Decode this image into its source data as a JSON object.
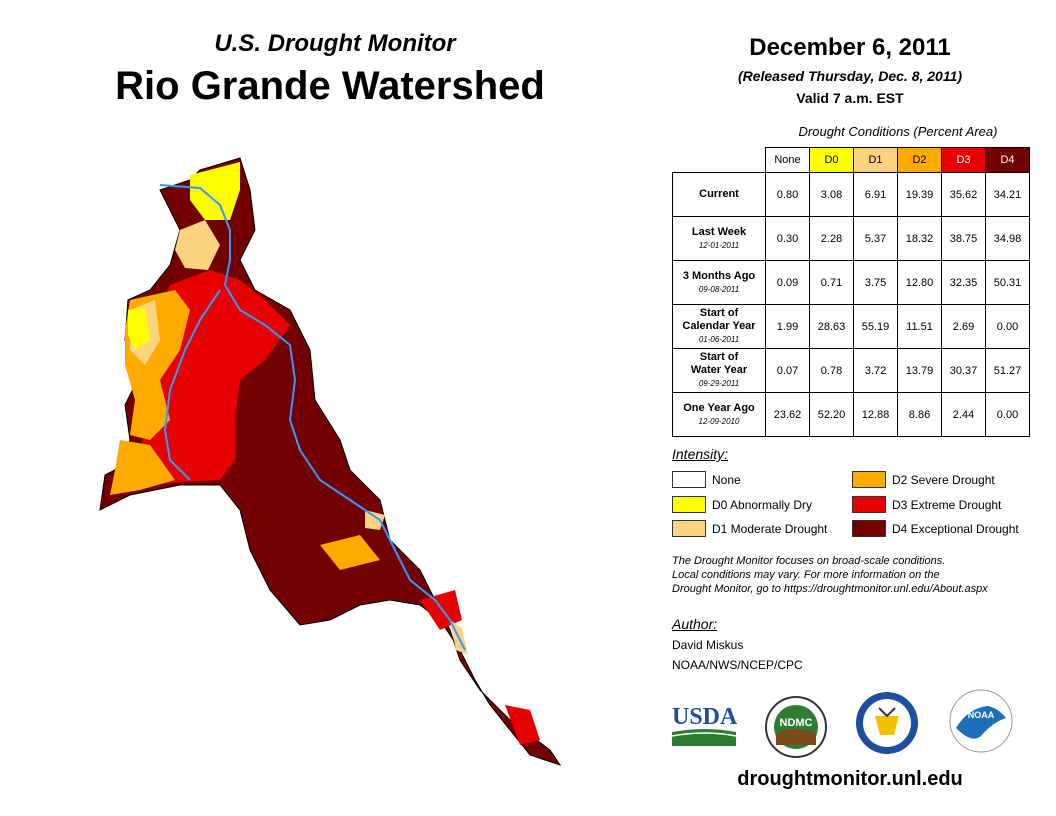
{
  "header": {
    "subtitle": "U.S. Drought Monitor",
    "title": "Rio Grande Watershed",
    "date": "December 6, 2011",
    "released": "(Released Thursday, Dec. 8, 2011)",
    "valid": "Valid 7 a.m. EST"
  },
  "table": {
    "caption": "Drought Conditions (Percent Area)",
    "columns": [
      "None",
      "D0",
      "D1",
      "D2",
      "D3",
      "D4"
    ],
    "column_colors": [
      "#ffffff",
      "#ffff00",
      "#fcd37f",
      "#ffaa00",
      "#e60000",
      "#730000"
    ],
    "rows": [
      {
        "label": "Current",
        "label2": "",
        "date": "",
        "values": [
          "0.80",
          "3.08",
          "6.91",
          "19.39",
          "35.62",
          "34.21"
        ]
      },
      {
        "label": "Last Week",
        "label2": "",
        "date": "12-01-2011",
        "values": [
          "0.30",
          "2.28",
          "5.37",
          "18.32",
          "38.75",
          "34.98"
        ]
      },
      {
        "label": "3 Months Ago",
        "label2": "",
        "date": "09-08-2011",
        "values": [
          "0.09",
          "0.71",
          "3.75",
          "12.80",
          "32.35",
          "50.31"
        ]
      },
      {
        "label": "Start of",
        "label2": "Calendar Year",
        "date": "01-06-2011",
        "values": [
          "1.99",
          "28.63",
          "55.19",
          "11.51",
          "2.69",
          "0.00"
        ]
      },
      {
        "label": "Start of",
        "label2": "Water Year",
        "date": "09-29-2011",
        "values": [
          "0.07",
          "0.78",
          "3.72",
          "13.79",
          "30.37",
          "51.27"
        ]
      },
      {
        "label": "One Year Ago",
        "label2": "",
        "date": "12-09-2010",
        "values": [
          "23.62",
          "52.20",
          "12.88",
          "8.86",
          "2.44",
          "0.00"
        ]
      }
    ]
  },
  "legend": {
    "title": "Intensity:",
    "items": [
      {
        "label": "None",
        "color": "#ffffff"
      },
      {
        "label": "D0 Abnormally Dry",
        "color": "#ffff00"
      },
      {
        "label": "D1 Moderate Drought",
        "color": "#fcd37f"
      },
      {
        "label": "D2 Severe Drought",
        "color": "#ffaa00"
      },
      {
        "label": "D3 Extreme Drought",
        "color": "#e60000"
      },
      {
        "label": "D4 Exceptional Drought",
        "color": "#730000"
      }
    ]
  },
  "note": {
    "line1": "The Drought Monitor focuses on broad-scale conditions.",
    "line2": "Local conditions may vary. For more information on the",
    "line3": "Drought Monitor, go to https://droughtmonitor.unl.edu/About.aspx"
  },
  "author": {
    "label": "Author:",
    "name": "David Miskus",
    "org": "NOAA/NWS/NCEP/CPC"
  },
  "logos": {
    "usda": "USDA",
    "ndmc": "NDMC",
    "noaa": "NOAA"
  },
  "website": "droughtmonitor.unl.edu",
  "map": {
    "river_color": "#3399ff"
  }
}
